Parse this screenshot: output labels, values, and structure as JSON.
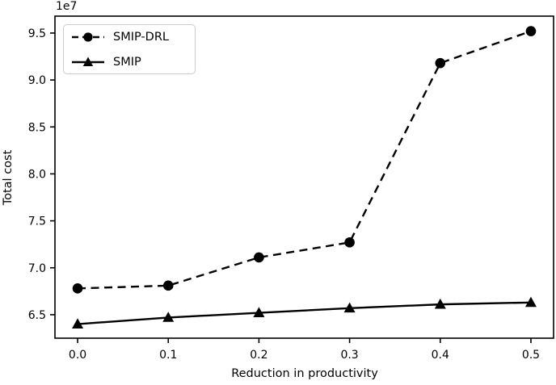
{
  "chart_data": {
    "type": "line",
    "title": "",
    "xlabel": "Reduction in productivity",
    "ylabel": "Total cost",
    "y_offset_label": "1e7",
    "y_multiplier": 10000000,
    "x": [
      0.0,
      0.1,
      0.2,
      0.3,
      0.4,
      0.5
    ],
    "series": [
      {
        "name": "SMIP-DRL",
        "values_1e7": [
          6.78,
          6.81,
          7.11,
          7.27,
          9.18,
          9.52
        ],
        "line_style": "dashed",
        "marker": "circle"
      },
      {
        "name": "SMIP",
        "values_1e7": [
          6.4,
          6.47,
          6.52,
          6.57,
          6.61,
          6.63
        ],
        "line_style": "solid",
        "marker": "triangle"
      }
    ],
    "xticks": [
      0.0,
      0.1,
      0.2,
      0.3,
      0.4,
      0.5
    ],
    "xtick_labels": [
      "0.0",
      "0.1",
      "0.2",
      "0.3",
      "0.4",
      "0.5"
    ],
    "yticks_1e7": [
      6.5,
      7.0,
      7.5,
      8.0,
      8.5,
      9.0,
      9.5
    ],
    "ytick_labels": [
      "6.5",
      "7.0",
      "7.5",
      "8.0",
      "8.5",
      "9.0",
      "9.5"
    ],
    "xlim": [
      -0.025,
      0.525
    ],
    "ylim_1e7": [
      6.25,
      9.68
    ],
    "grid": false,
    "legend_position": "upper left",
    "line_color": "#000000",
    "background_color": "#ffffff"
  }
}
